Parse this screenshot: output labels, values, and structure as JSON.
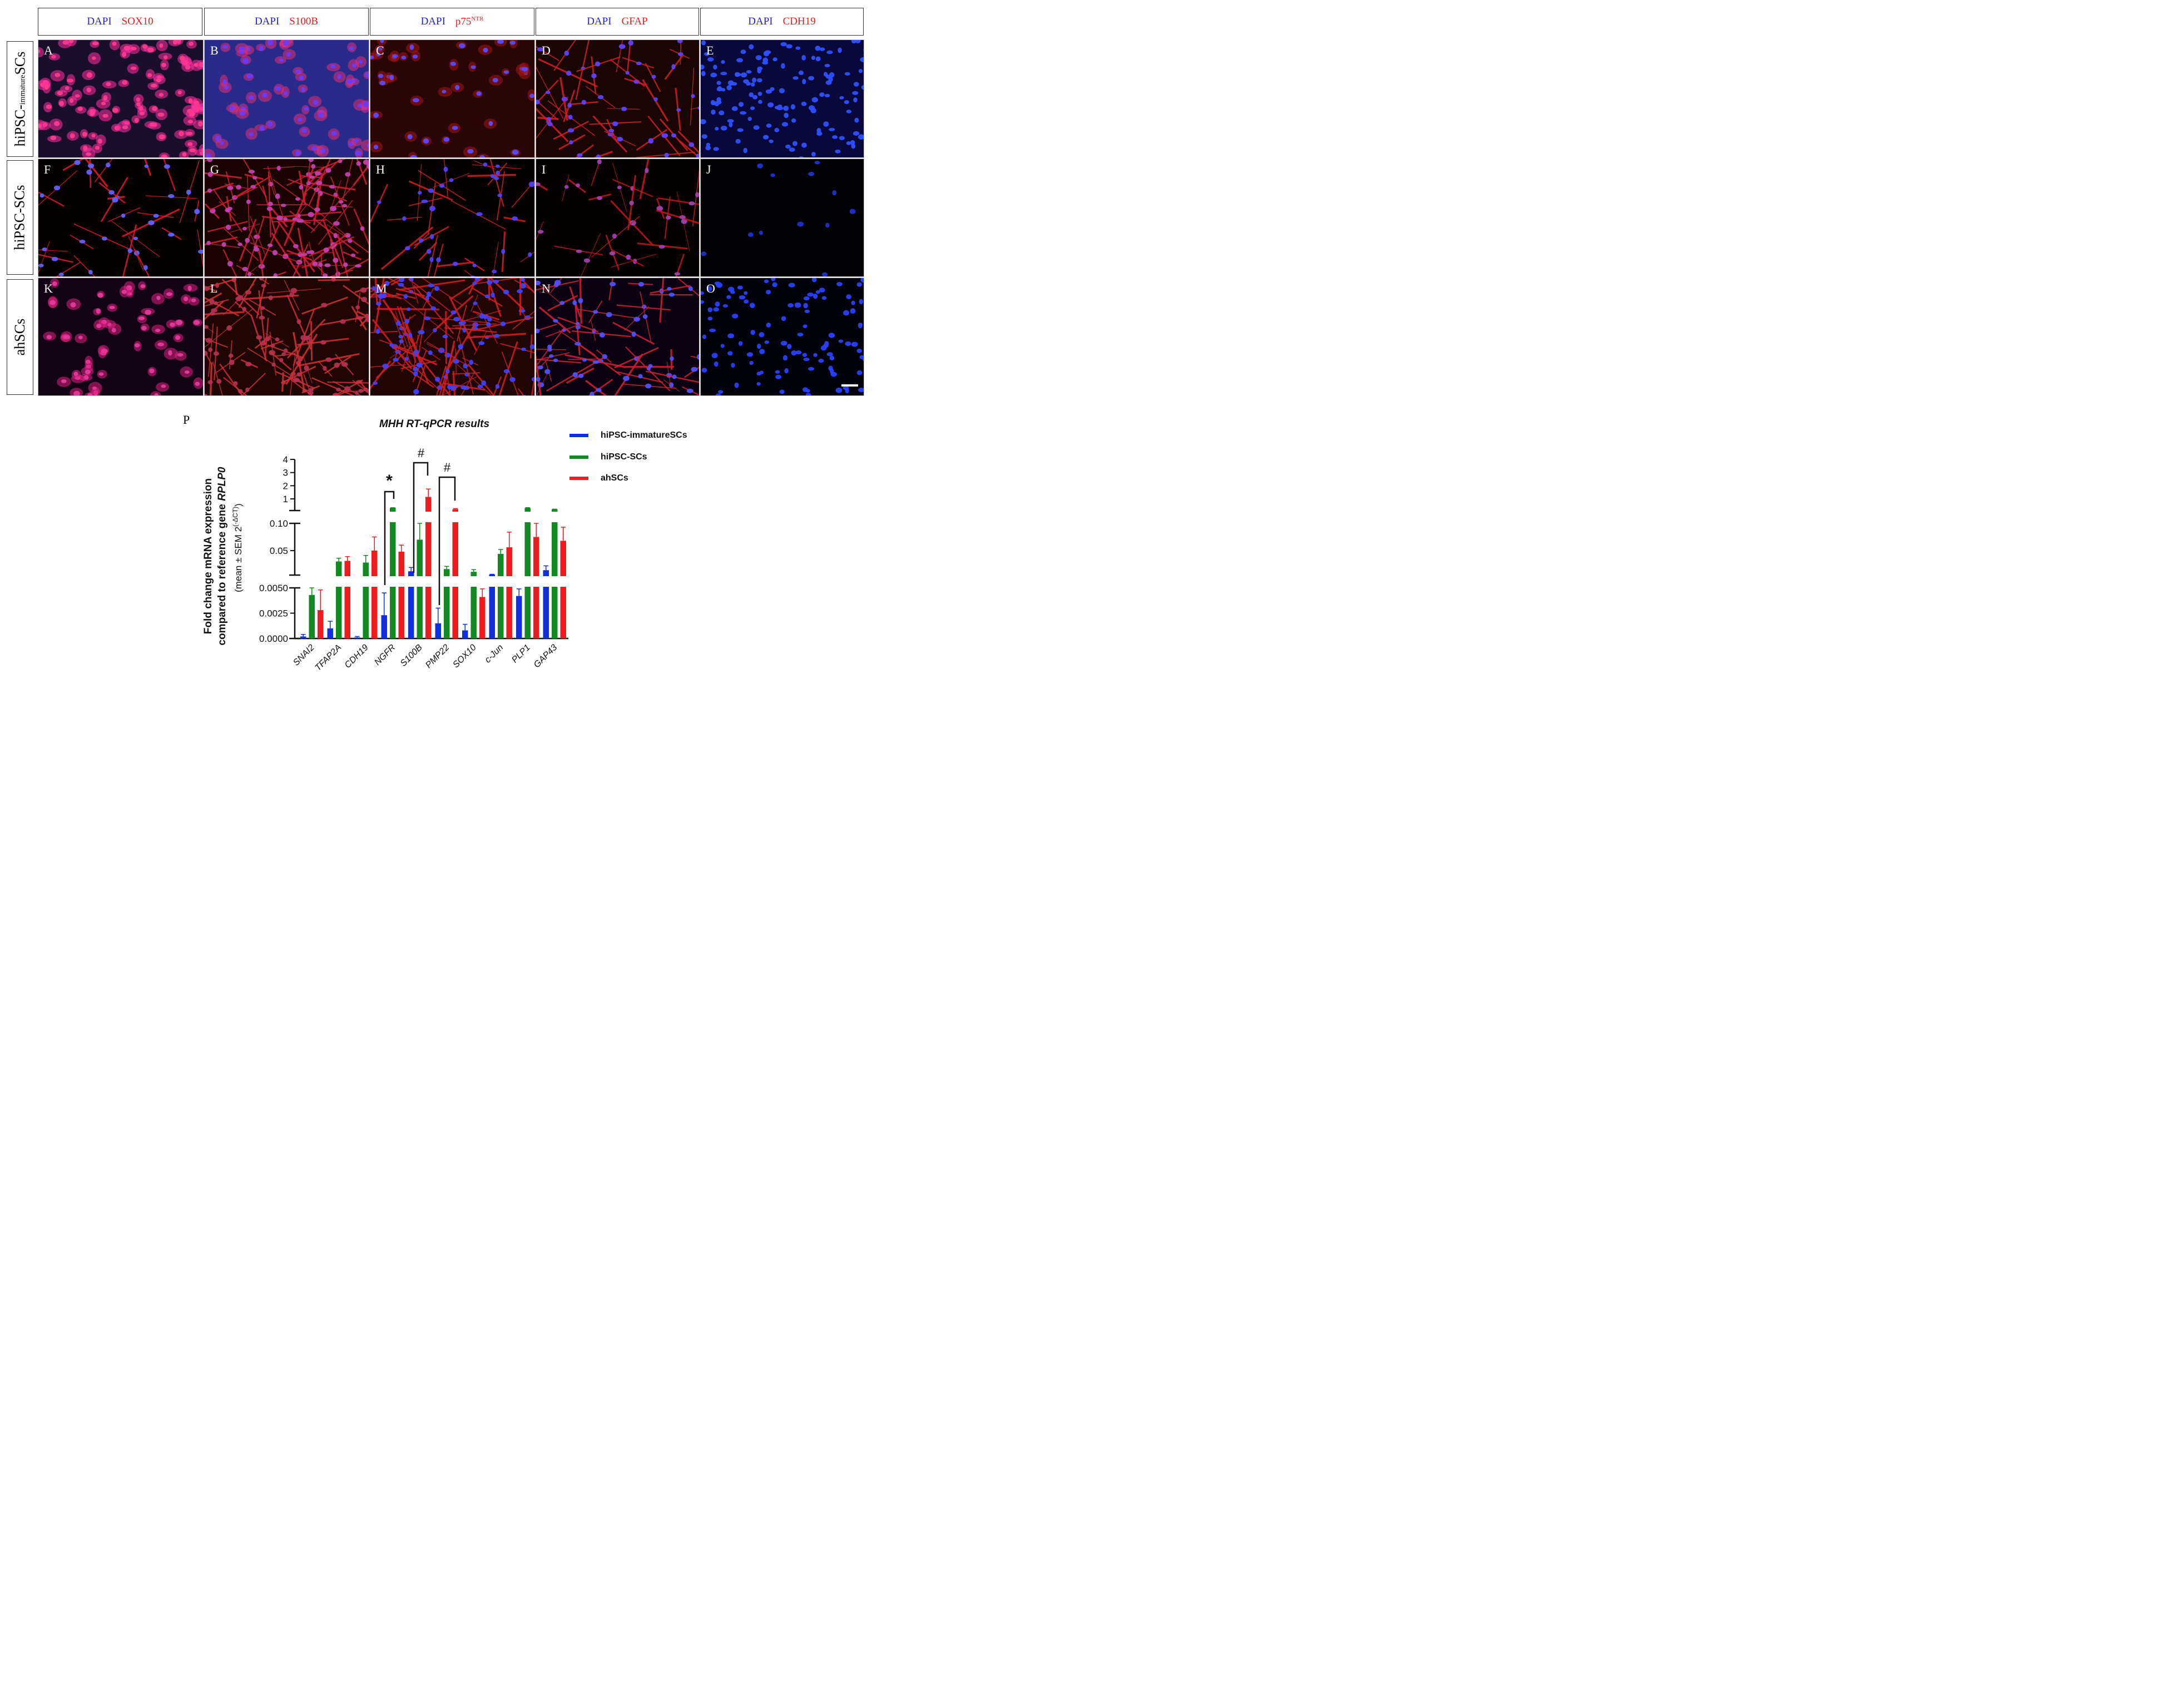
{
  "columns": [
    {
      "dapi": "DAPI",
      "marker": "SOX10",
      "sup": ""
    },
    {
      "dapi": "DAPI",
      "marker": "S100B",
      "sup": ""
    },
    {
      "dapi": "DAPI",
      "marker": "p75",
      "sup": "NTR"
    },
    {
      "dapi": "DAPI",
      "marker": "GFAP",
      "sup": ""
    },
    {
      "dapi": "DAPI",
      "marker": "CDH19",
      "sup": ""
    }
  ],
  "rows": [
    {
      "label": "hiPSC-",
      "label_small": "immature",
      "label_end": "SCs"
    },
    {
      "label": "hiPSC-SCs",
      "label_small": "",
      "label_end": ""
    },
    {
      "label": "ahSCs",
      "label_small": "",
      "label_end": ""
    }
  ],
  "panel_letters": [
    "A",
    "B",
    "C",
    "D",
    "E",
    "F",
    "G",
    "H",
    "I",
    "J",
    "K",
    "L",
    "M",
    "N",
    "O"
  ],
  "chart_label": "P",
  "colors": {
    "dapi": "#1f1fd6",
    "marker": "#e02020",
    "series_1": "#1030e0",
    "series_2": "#118a21",
    "series_3": "#ee1c1c"
  },
  "chart_data": {
    "type": "bar",
    "title": "MHH RT-qPCR results",
    "ylabel_line1": "Fold change mRNA expression",
    "ylabel_line2_prefix": "compared to reference gene ",
    "ylabel_line2_italic": "RPLP0",
    "ylabel_line3": "(mean ± SEM 2",
    "ylabel_line3_sup": "(-ΔCT)",
    "ylabel_line3_end": ")",
    "categories": [
      "SNAI2",
      "TFAP2A",
      "CDH19",
      "NGFR",
      "S100B",
      "PMP22",
      "SOX10",
      "c-Jun",
      "PLP1",
      "GAP43"
    ],
    "series": [
      {
        "name": "hiPSC-immatureSCs",
        "values": [
          0.0002,
          0.001,
          0.0001,
          0.0023,
          0.012,
          0.0015,
          0.0008,
          0.006,
          0.0042,
          0.014
        ],
        "err": [
          0.0002,
          0.0007,
          0.0001,
          0.0022,
          0.007,
          0.0015,
          0.0006,
          0.0005,
          0.0007,
          0.008
        ]
      },
      {
        "name": "hiPSC-SCs",
        "values": [
          0.0043,
          0.03,
          0.028,
          0.3,
          0.07,
          0.016,
          0.011,
          0.044,
          0.3,
          0.2
        ],
        "err": [
          0.0007,
          0.006,
          0.013,
          0.02,
          0.03,
          0.005,
          0.004,
          0.008,
          0.03,
          0.01
        ]
      },
      {
        "name": "ahSCs",
        "values": [
          0.0028,
          0.031,
          0.05,
          0.048,
          1.15,
          0.2,
          0.0041,
          0.056,
          0.075,
          0.068
        ],
        "err": [
          0.002,
          0.008,
          0.025,
          0.012,
          0.6,
          0.05,
          0.0008,
          0.028,
          0.025,
          0.025
        ]
      }
    ],
    "y_segments": [
      {
        "range": [
          0,
          0.005
        ],
        "ticks": [
          "0.0000",
          "0.0025",
          "0.0050"
        ]
      },
      {
        "range": [
          0.005,
          0.1
        ],
        "ticks": [
          "0.05",
          "0.10"
        ]
      },
      {
        "range": [
          0.1,
          4
        ],
        "ticks": [
          "1",
          "2",
          "3",
          "4"
        ]
      }
    ],
    "annotations": [
      "*",
      "#",
      "#"
    ],
    "legend_position": "top-right"
  }
}
